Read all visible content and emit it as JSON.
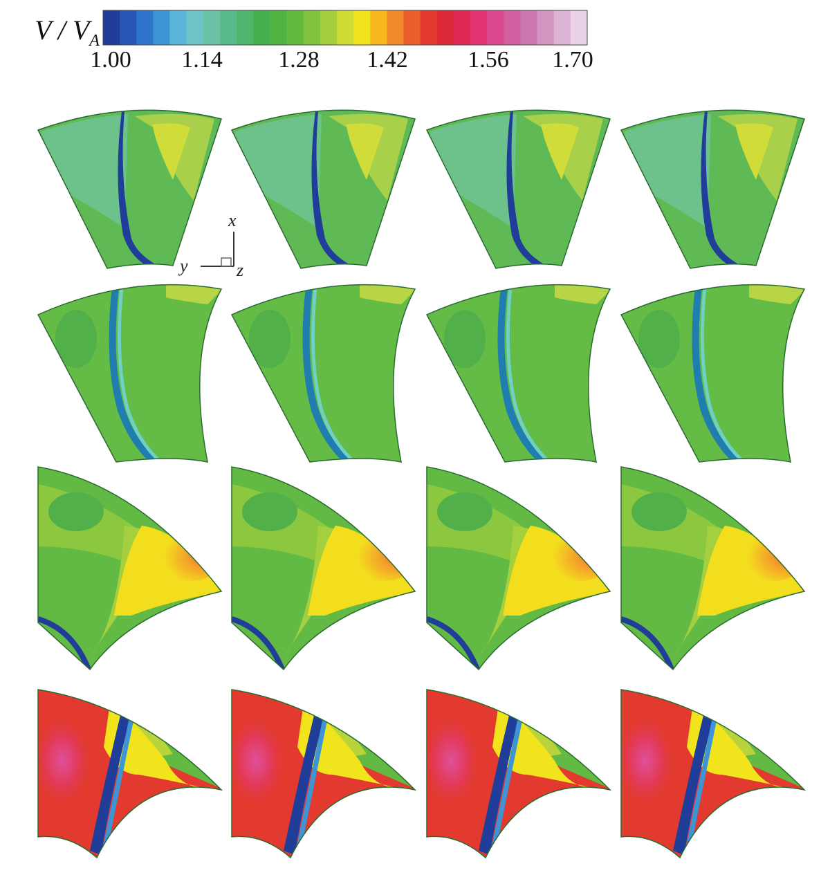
{
  "colorbar": {
    "label_main": "V / V",
    "label_sub": "A",
    "ticks": [
      "1.00",
      "1.14",
      "1.28",
      "1.42",
      "1.56",
      "1.70"
    ],
    "colors": [
      "#1f3d99",
      "#2756b8",
      "#2f74cc",
      "#3d95d6",
      "#5ab5d8",
      "#6fc4c6",
      "#6cc2a4",
      "#5ab98a",
      "#4fb56c",
      "#46b04f",
      "#4fb442",
      "#62bb3d",
      "#7ec23d",
      "#a5cd3c",
      "#cfdc35",
      "#f2e41c",
      "#f8b820",
      "#f08a2a",
      "#ea5f2c",
      "#e23a2e",
      "#dc2a38",
      "#e02a55",
      "#e23472",
      "#d9488e",
      "#d0609f",
      "#cc78ae",
      "#d294c0",
      "#ddb3d3",
      "#ead3e6"
    ]
  },
  "axes_indicator": {
    "x": "x",
    "y": "y",
    "z": "z"
  },
  "colors": {
    "background": "#ffffff",
    "outline": "#111111"
  }
}
